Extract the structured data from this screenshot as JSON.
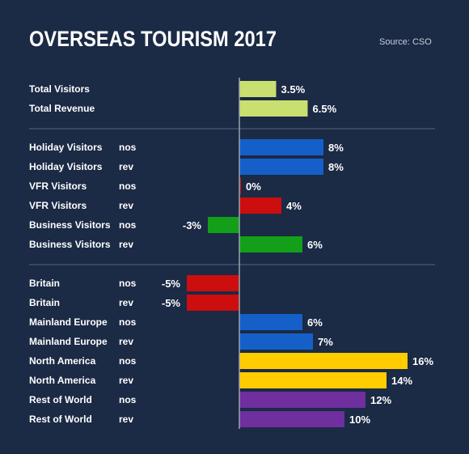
{
  "header": {
    "title": "OVERSEAS TOURISM 2017",
    "source": "Source: CSO"
  },
  "colors": {
    "background": "#1b2a45",
    "axis": "#9aa3b0",
    "separator": "#5a6577",
    "total": "#c9df6f",
    "holiday": "#1560c8",
    "vfr": "#cc0e0e",
    "business": "#13a018",
    "britain": "#cc0e0e",
    "europe": "#1560c8",
    "north_america": "#ffcc00",
    "rest_of_world": "#6f2f9e"
  },
  "chart_data": {
    "type": "bar",
    "orientation": "horizontal",
    "title": "OVERSEAS TOURISM 2017",
    "unit": "%",
    "xlim": [
      -8,
      17
    ],
    "groups": [
      {
        "rows": [
          {
            "label": "Total Visitors",
            "kind": "",
            "value": 3.5,
            "value_label": "3.5%",
            "color": "total"
          },
          {
            "label": "Total Revenue",
            "kind": "",
            "value": 6.5,
            "value_label": "6.5%",
            "color": "total"
          }
        ]
      },
      {
        "rows": [
          {
            "label": "Holiday Visitors",
            "kind": "nos",
            "value": 8,
            "value_label": "8%",
            "color": "holiday"
          },
          {
            "label": "Holiday Visitors",
            "kind": "rev",
            "value": 8,
            "value_label": "8%",
            "color": "holiday"
          },
          {
            "label": "VFR Visitors",
            "kind": "nos",
            "value": 0,
            "value_label": "0%",
            "color": "vfr"
          },
          {
            "label": "VFR Visitors",
            "kind": "rev",
            "value": 4,
            "value_label": "4%",
            "color": "vfr"
          },
          {
            "label": "Business Visitors",
            "kind": "nos",
            "value": -3,
            "value_label": "-3%",
            "color": "business"
          },
          {
            "label": "Business Visitors",
            "kind": "rev",
            "value": 6,
            "value_label": "6%",
            "color": "business"
          }
        ]
      },
      {
        "rows": [
          {
            "label": "Britain",
            "kind": "nos",
            "value": -5,
            "value_label": "-5%",
            "color": "britain"
          },
          {
            "label": "Britain",
            "kind": "rev",
            "value": -5,
            "value_label": "-5%",
            "color": "britain"
          },
          {
            "label": "Mainland Europe",
            "kind": "nos",
            "value": 6,
            "value_label": "6%",
            "color": "europe"
          },
          {
            "label": "Mainland Europe",
            "kind": "rev",
            "value": 7,
            "value_label": "7%",
            "color": "europe"
          },
          {
            "label": "North America",
            "kind": "nos",
            "value": 16,
            "value_label": "16%",
            "color": "north_america"
          },
          {
            "label": "North America",
            "kind": "rev",
            "value": 14,
            "value_label": "14%",
            "color": "north_america"
          },
          {
            "label": "Rest of World",
            "kind": "nos",
            "value": 12,
            "value_label": "12%",
            "color": "rest_of_world"
          },
          {
            "label": "Rest of World",
            "kind": "rev",
            "value": 10,
            "value_label": "10%",
            "color": "rest_of_world"
          }
        ]
      }
    ]
  }
}
